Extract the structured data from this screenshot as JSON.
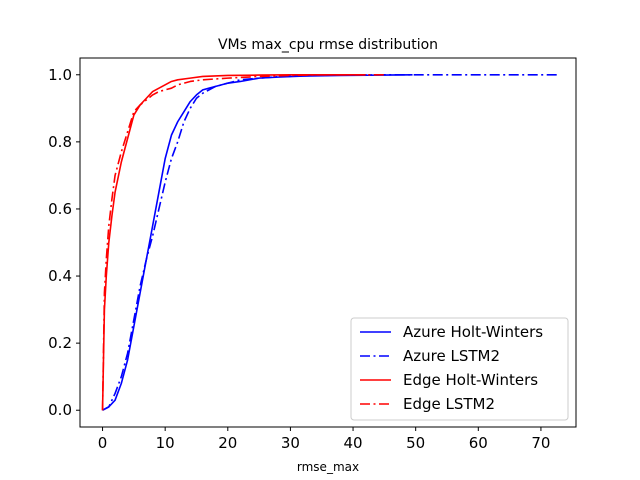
{
  "chart_data": {
    "type": "line",
    "title": "VMs max_cpu rmse distribution",
    "xlabel": "rmse_max",
    "ylabel": "",
    "xlim": [
      -3.6,
      75.6
    ],
    "ylim": [
      -0.05,
      1.05
    ],
    "xticks": [
      0,
      10,
      20,
      30,
      40,
      50,
      60,
      70
    ],
    "yticks": [
      0.0,
      0.2,
      0.4,
      0.6,
      0.8,
      1.0
    ],
    "xtick_labels": [
      "0",
      "10",
      "20",
      "30",
      "40",
      "50",
      "60",
      "70"
    ],
    "ytick_labels": [
      "0.0",
      "0.2",
      "0.4",
      "0.6",
      "0.8",
      "1.0"
    ],
    "grid": false,
    "legend_position": "bottom-right",
    "series": [
      {
        "name": "Azure Holt-Winters",
        "color": "#0000ff",
        "style": "solid",
        "x": [
          0,
          1,
          2,
          3,
          4,
          5,
          6,
          7,
          8,
          9,
          10,
          11,
          12,
          13,
          14,
          15,
          16,
          17,
          18,
          20,
          22,
          25,
          28,
          32,
          38,
          45,
          49.5
        ],
        "y": [
          0.0,
          0.01,
          0.03,
          0.08,
          0.15,
          0.25,
          0.35,
          0.45,
          0.55,
          0.65,
          0.75,
          0.82,
          0.86,
          0.89,
          0.92,
          0.94,
          0.955,
          0.96,
          0.965,
          0.975,
          0.98,
          0.99,
          0.993,
          0.996,
          0.998,
          0.999,
          1.0
        ]
      },
      {
        "name": "Azure LSTM2",
        "color": "#0000ff",
        "style": "dashdot",
        "x": [
          0,
          1,
          2,
          3,
          4,
          5,
          6,
          7,
          8,
          9,
          10,
          11,
          12,
          13,
          14,
          15,
          16,
          17,
          18,
          20,
          22,
          25,
          28,
          32,
          38,
          45,
          55,
          65,
          73
        ],
        "y": [
          0.0,
          0.01,
          0.05,
          0.1,
          0.17,
          0.27,
          0.37,
          0.45,
          0.52,
          0.6,
          0.68,
          0.75,
          0.8,
          0.86,
          0.9,
          0.93,
          0.945,
          0.955,
          0.965,
          0.975,
          0.985,
          0.99,
          0.994,
          0.997,
          0.999,
          1.0,
          1.0,
          1.0,
          1.0
        ]
      },
      {
        "name": "Edge Holt-Winters",
        "color": "#ff0000",
        "style": "solid",
        "x": [
          0,
          0.3,
          0.6,
          1,
          1.5,
          2,
          3,
          4,
          5,
          6,
          7,
          8,
          9,
          10,
          11,
          12,
          14,
          16,
          20,
          25,
          30,
          35,
          42
        ],
        "y": [
          0.0,
          0.3,
          0.4,
          0.5,
          0.58,
          0.65,
          0.74,
          0.81,
          0.88,
          0.91,
          0.93,
          0.95,
          0.96,
          0.97,
          0.98,
          0.985,
          0.99,
          0.995,
          0.998,
          0.999,
          1.0,
          1.0,
          1.0
        ]
      },
      {
        "name": "Edge LSTM2",
        "color": "#ff0000",
        "style": "dashdot",
        "x": [
          0,
          0.3,
          0.6,
          1,
          1.5,
          2,
          3,
          4,
          5,
          6,
          7,
          8,
          9,
          10,
          11,
          12,
          14,
          16,
          20,
          25,
          30,
          35,
          40,
          45
        ],
        "y": [
          0.0,
          0.35,
          0.45,
          0.55,
          0.63,
          0.7,
          0.77,
          0.83,
          0.89,
          0.91,
          0.925,
          0.94,
          0.95,
          0.955,
          0.96,
          0.97,
          0.98,
          0.985,
          0.99,
          0.995,
          0.998,
          1.0,
          1.0,
          1.0
        ]
      }
    ]
  }
}
